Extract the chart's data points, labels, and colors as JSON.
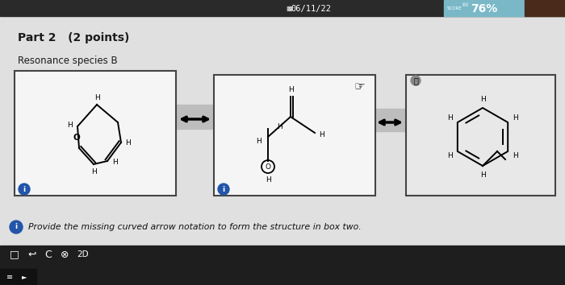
{
  "bg_color": "#c8c8c8",
  "top_bar_color": "#2a2a2a",
  "score_bg_color": "#7ab8c8",
  "score_dark_color": "#4a2a1a",
  "top_text_date": "06/11/22",
  "top_text_score": "76%",
  "title": "Part 2   (2 points)",
  "subtitle": "Resonance species B",
  "instruction": "Provide the missing curved arrow notation to form the structure in box two.",
  "content_bg": "#d4d4d4",
  "box_bg": "#f5f5f5",
  "box_border": "#444444",
  "info_circle_color": "#2255aa",
  "toolbar_bg": "#1e1e1e",
  "arrow_color": "#111111"
}
